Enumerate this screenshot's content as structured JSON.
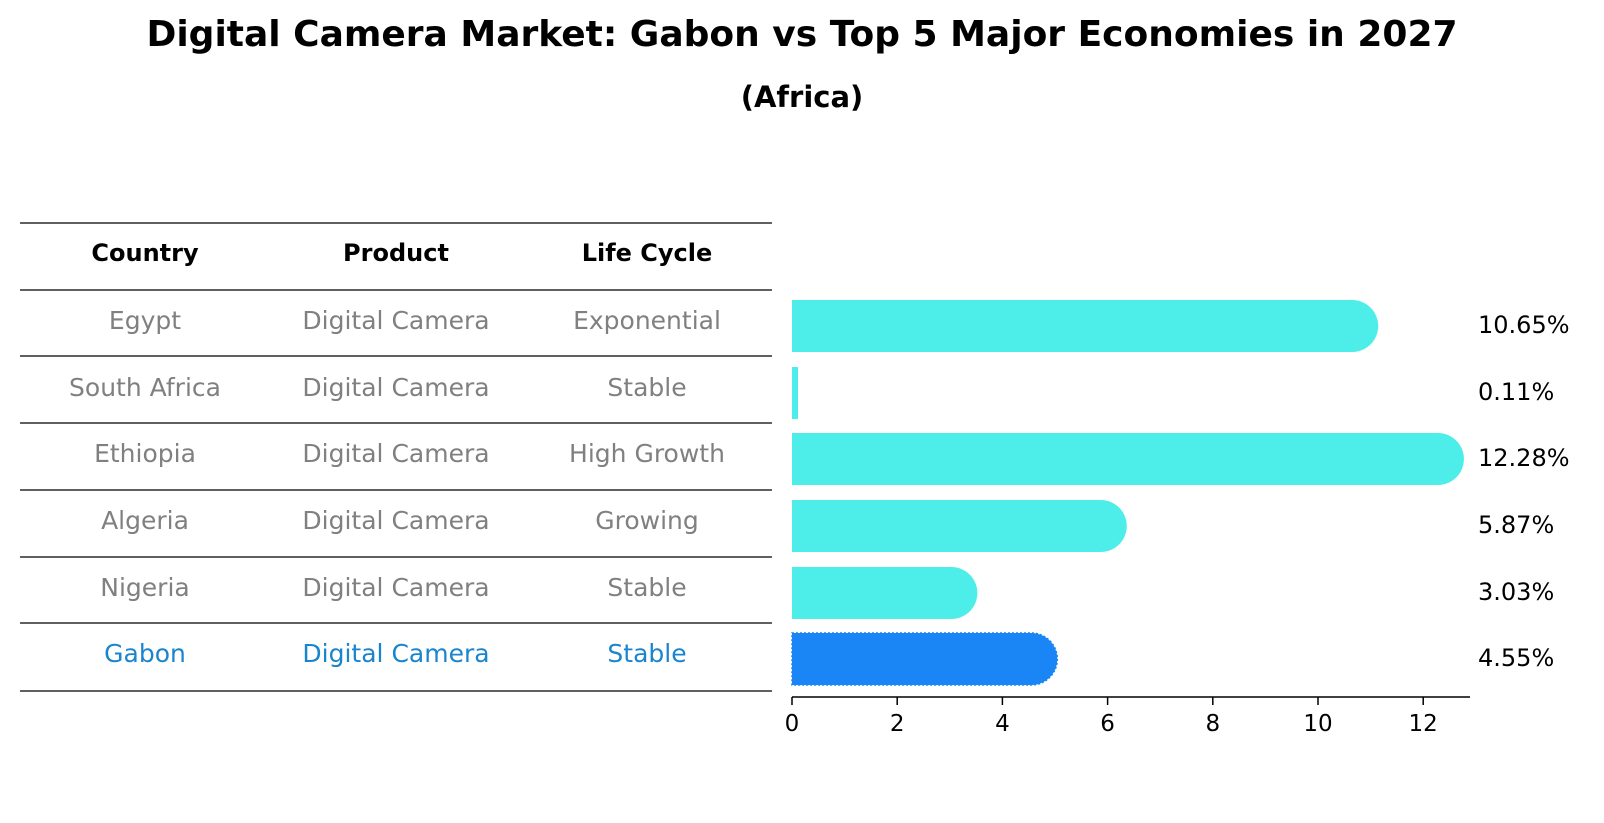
{
  "chart_data": {
    "type": "bar",
    "orientation": "horizontal",
    "title": "Digital Camera Market: Gabon vs Top 5 Major Economies in 2027",
    "subtitle": "(Africa)",
    "table": {
      "columns": [
        "Country",
        "Product",
        "Life Cycle"
      ],
      "rows": [
        [
          "Egypt",
          "Digital Camera",
          "Exponential"
        ],
        [
          "South Africa",
          "Digital Camera",
          "Stable"
        ],
        [
          "Ethiopia",
          "Digital Camera",
          "High Growth"
        ],
        [
          "Algeria",
          "Digital Camera",
          "Growing"
        ],
        [
          "Nigeria",
          "Digital Camera",
          "Stable"
        ],
        [
          "Gabon",
          "Digital Camera",
          "Stable"
        ]
      ]
    },
    "categories": [
      "Egypt",
      "South Africa",
      "Ethiopia",
      "Algeria",
      "Nigeria",
      "Gabon"
    ],
    "values": [
      10.65,
      0.11,
      12.28,
      5.87,
      3.03,
      4.55
    ],
    "value_labels": [
      "10.65%",
      "0.11%",
      "12.28%",
      "5.87%",
      "3.03%",
      "4.55%"
    ],
    "highlight": "Gabon",
    "xlim": [
      0,
      12.9
    ],
    "xticks": [
      0,
      2,
      4,
      6,
      8,
      10,
      12
    ],
    "xlabel": "",
    "ylabel": "",
    "colors": {
      "bar": "#4deeea",
      "highlight_bar": "#1a85f5",
      "row_text": "#808080",
      "highlight_text": "#1a85cf",
      "header_text": "#000000"
    }
  }
}
